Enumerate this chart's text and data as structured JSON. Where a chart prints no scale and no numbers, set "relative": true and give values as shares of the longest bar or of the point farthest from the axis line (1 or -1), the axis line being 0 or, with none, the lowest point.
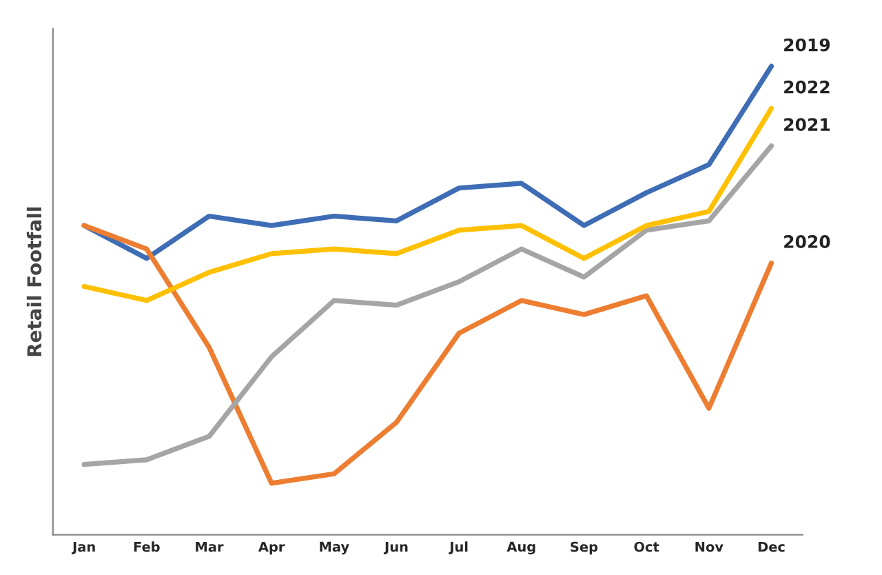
{
  "chart_data": {
    "type": "line",
    "relative": true,
    "ylabel": "Retail Footfall",
    "categories": [
      "Jan",
      "Feb",
      "Mar",
      "Apr",
      "May",
      "Jun",
      "Jul",
      "Aug",
      "Sep",
      "Oct",
      "Nov",
      "Dec"
    ],
    "series": [
      {
        "name": "2019",
        "color": "#3e6db5",
        "values": [
          0.66,
          0.59,
          0.68,
          0.66,
          0.68,
          0.67,
          0.74,
          0.75,
          0.66,
          0.73,
          0.79,
          1.0
        ]
      },
      {
        "name": "2020",
        "color": "#ed7d31",
        "values": [
          0.66,
          0.61,
          0.4,
          0.11,
          0.13,
          0.24,
          0.43,
          0.5,
          0.47,
          0.51,
          0.27,
          0.58
        ]
      },
      {
        "name": "2021",
        "color": "#a5a5a5",
        "values": [
          0.15,
          0.16,
          0.21,
          0.38,
          0.5,
          0.49,
          0.54,
          0.61,
          0.55,
          0.65,
          0.67,
          0.83
        ]
      },
      {
        "name": "2022",
        "color": "#ffc000",
        "values": [
          0.53,
          0.5,
          0.56,
          0.6,
          0.61,
          0.6,
          0.65,
          0.66,
          0.59,
          0.66,
          0.69,
          0.91
        ]
      }
    ],
    "legend": false,
    "grid": false,
    "marker": "none",
    "line_style": "solid"
  }
}
